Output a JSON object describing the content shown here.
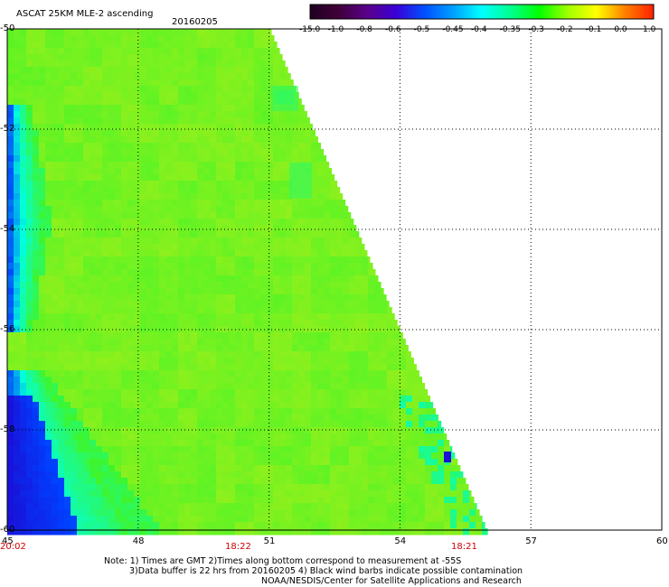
{
  "header": {
    "title": "ASCAT 25KM MLE-2 ascending",
    "date": "20160205"
  },
  "colorbar": {
    "labels": [
      "-15.0",
      "-1.0",
      "-0.8",
      "-0.6",
      "-0.5",
      "-0.45",
      "-0.4",
      "-0.35",
      "-0.3",
      "-0.2",
      "-0.1",
      "0.0",
      "1.0"
    ],
    "colors": [
      "#200020",
      "#40003a",
      "#5a008a",
      "#3a00d8",
      "#0050ff",
      "#00a0ff",
      "#00ffff",
      "#00ff90",
      "#00ff00",
      "#a0ff00",
      "#ffff00",
      "#ff8000",
      "#ff2000"
    ]
  },
  "map": {
    "lon_range": [
      45,
      60
    ],
    "lat_range": [
      -60,
      -50
    ],
    "x_tick_labels": [
      "45",
      "48",
      "51",
      "54",
      "57",
      "60"
    ],
    "y_tick_labels": [
      "-50",
      "-52",
      "-54",
      "-56",
      "-58",
      "-60"
    ],
    "time_labels": [
      "20:02",
      "18:22",
      "18:21"
    ],
    "colors": {
      "green": "#3ff52a",
      "yellowgreen": "#90f01c",
      "cyan": "#00ffdc",
      "blue": "#0040ff",
      "darkblue": "#1a10d8"
    }
  },
  "notes": {
    "line1": "Note: 1) Times are GMT 2)Times along bottom correspond to measurement at -55S",
    "line2": "3)Data buffer is 22 hrs from 20160205 4) Black wind barbs indicate possible contamination",
    "line3": "NOAA/NESDIS/Center for Satellite Applications and Research"
  }
}
